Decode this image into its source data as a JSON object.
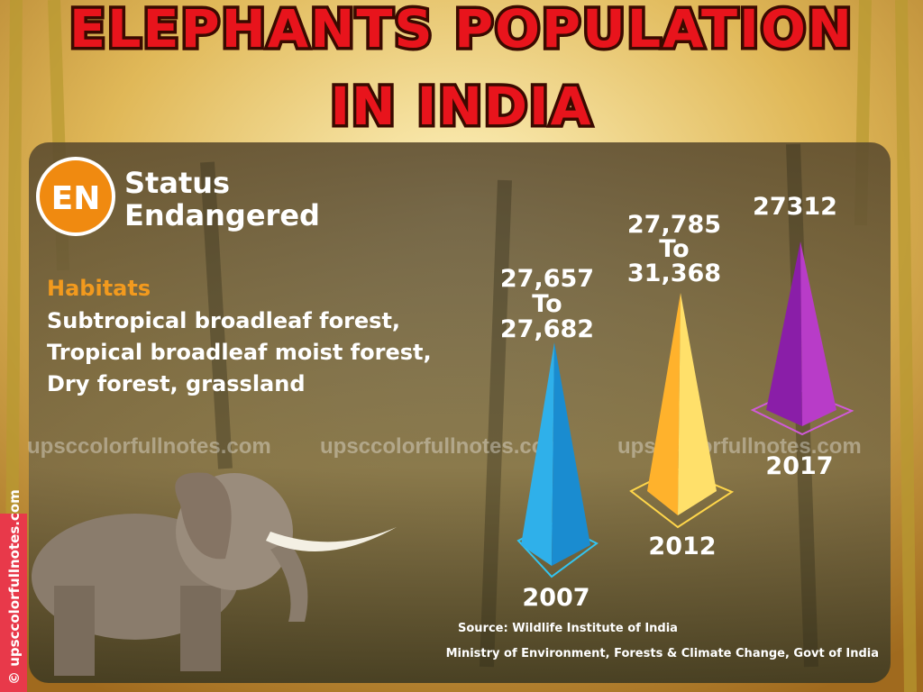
{
  "header": {
    "title": [
      "ELEPHANTS POPULATION",
      "IN INDIA"
    ]
  },
  "status": {
    "badge": "EN",
    "label": "Status",
    "value": "Endangered"
  },
  "habitats": {
    "label": "Habitats",
    "lines": [
      "Subtropical broadleaf forest,",
      "Tropical broadleaf moist forest,",
      "Dry forest, grassland"
    ]
  },
  "estimates": [
    {
      "year": "2007",
      "range": [
        "27,657",
        "To",
        "27,682"
      ]
    },
    {
      "year": "2012",
      "range": [
        "27,785",
        "To",
        "31,368"
      ]
    },
    {
      "year": "2017",
      "range": [
        "27312"
      ]
    }
  ],
  "watermarks": [
    "upsccolorfullnotes.com",
    "upsccolorfullnotes.com",
    "upsccolorfullnotes.com"
  ],
  "side_watermark": "© upsccolorfullnotes.com",
  "source": [
    "Source: Wildlife Institute of India",
    "Ministry of Environment, Forests & Climate Change, Govt of India"
  ]
}
